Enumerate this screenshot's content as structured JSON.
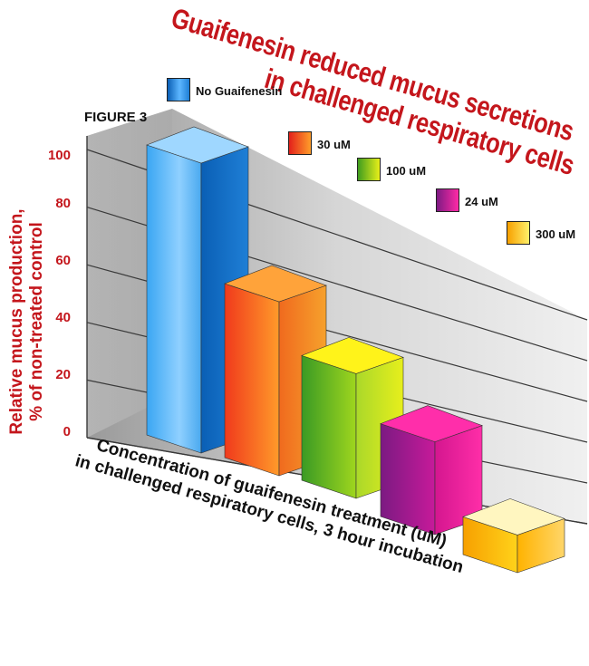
{
  "figure_label": "FIGURE 3",
  "chart_data": {
    "type": "bar",
    "title_line1": "Guaifenesin reduced mucus secretions",
    "title_line2": "in challenged respiratory cells",
    "ylabel_line1": "Relative mucus production,",
    "ylabel_line2": "% of non-treated control",
    "xlabel_line1": "Concentration of guaifenesin treatment (uM)",
    "xlabel_line2": "in challenged respiratory cells, 3 hour incubation",
    "ylim": [
      0,
      100
    ],
    "yticks": [
      "0",
      "20",
      "40",
      "60",
      "80",
      "100"
    ],
    "categories": [
      "No Guaifenesin",
      "30 uM",
      "100 uM",
      "24 uM",
      "300 uM"
    ],
    "values": [
      100,
      60,
      43,
      32,
      13
    ],
    "colors": {
      "No Guaifenesin": "#1f7fd6",
      "30 uM": "#f0401e",
      "100 uM": "#7ec21c",
      "24 uM": "#b3148c",
      "300 uM": "#f7a000"
    },
    "legend_position": "top-right, diagonal",
    "grid": true
  }
}
